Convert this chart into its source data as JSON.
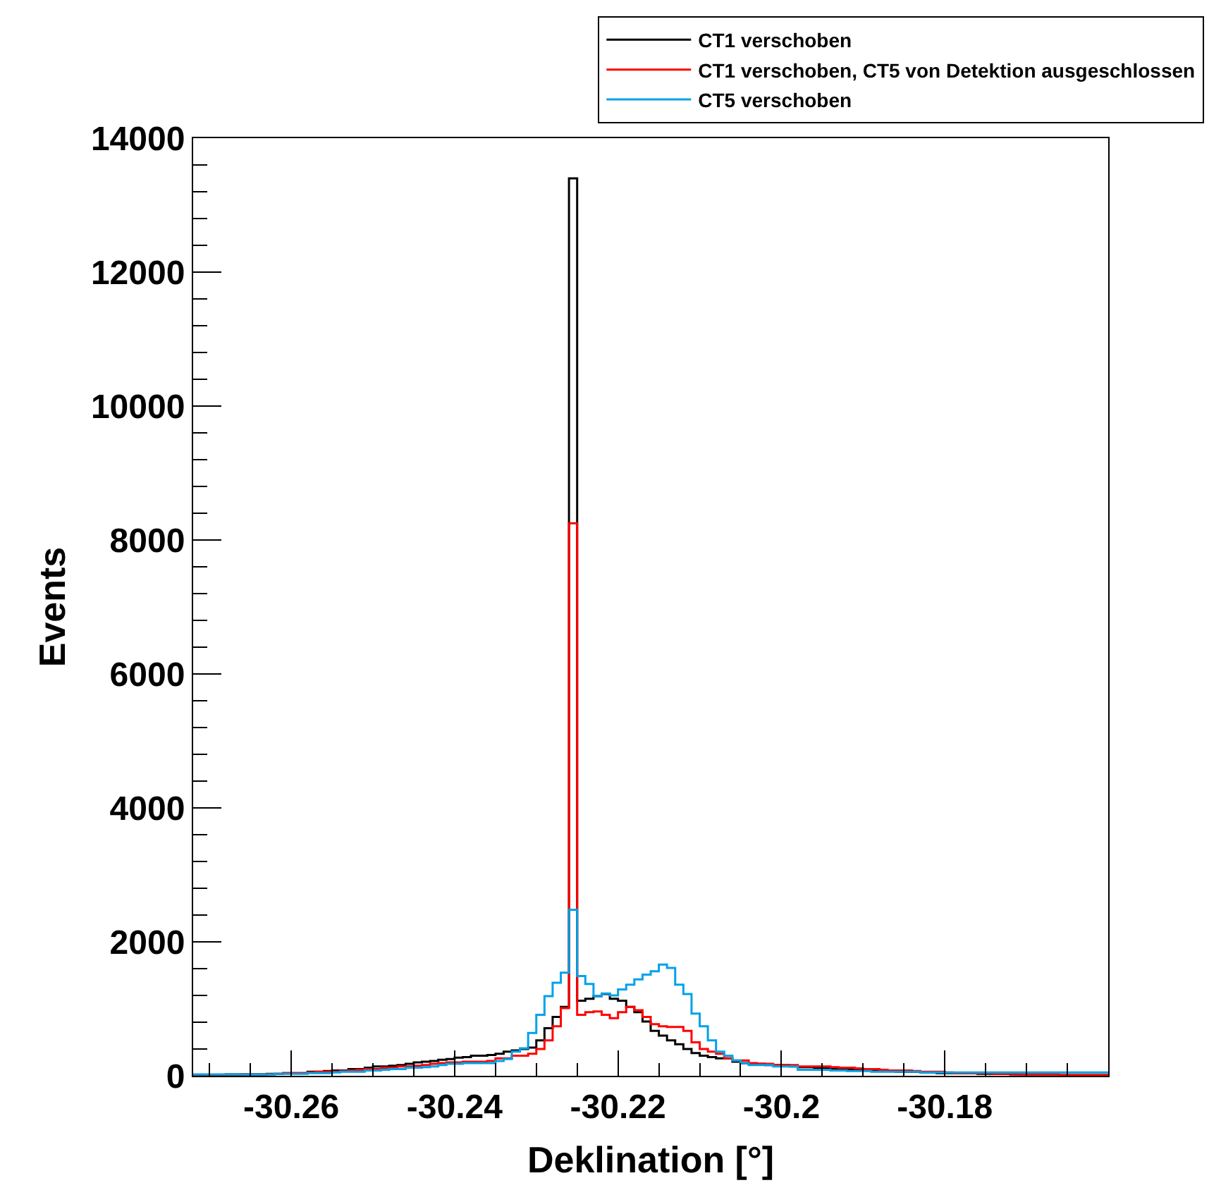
{
  "chart_data": {
    "type": "histogram",
    "xlabel": "Deklination [°]",
    "ylabel": "Events",
    "bins": [
      -30.272,
      -30.271,
      -30.27,
      -30.269,
      -30.268,
      -30.267,
      -30.266,
      -30.265,
      -30.264,
      -30.263,
      -30.262,
      -30.261,
      -30.26,
      -30.259,
      -30.258,
      -30.257,
      -30.256,
      -30.255,
      -30.254,
      -30.253,
      -30.252,
      -30.251,
      -30.25,
      -30.249,
      -30.248,
      -30.247,
      -30.246,
      -30.245,
      -30.244,
      -30.243,
      -30.242,
      -30.241,
      -30.24,
      -30.239,
      -30.238,
      -30.237,
      -30.236,
      -30.235,
      -30.234,
      -30.233,
      -30.232,
      -30.231,
      -30.23,
      -30.229,
      -30.228,
      -30.227,
      -30.226,
      -30.225,
      -30.224,
      -30.223,
      -30.222,
      -30.221,
      -30.22,
      -30.219,
      -30.218,
      -30.217,
      -30.216,
      -30.215,
      -30.214,
      -30.213,
      -30.212,
      -30.211,
      -30.21,
      -30.209,
      -30.208,
      -30.207,
      -30.206,
      -30.205,
      -30.204,
      -30.203,
      -30.202,
      -30.201,
      -30.2,
      -30.199,
      -30.198,
      -30.197,
      -30.196,
      -30.195,
      -30.194,
      -30.193,
      -30.192,
      -30.191,
      -30.19,
      -30.189,
      -30.188,
      -30.187,
      -30.186,
      -30.185,
      -30.184,
      -30.183,
      -30.182,
      -30.181,
      -30.18,
      -30.179,
      -30.178,
      -30.177,
      -30.176,
      -30.175,
      -30.174,
      -30.173,
      -30.172,
      -30.171,
      -30.17,
      -30.169,
      -30.168,
      -30.167,
      -30.166,
      -30.165,
      -30.164,
      -30.163,
      -30.162,
      -30.161,
      -30.16
    ],
    "series": [
      {
        "name": "CT1 verschoben",
        "color": "#000000",
        "values": [
          10,
          10,
          10,
          10,
          20,
          20,
          20,
          20,
          20,
          30,
          30,
          40,
          40,
          40,
          60,
          60,
          70,
          80,
          80,
          100,
          100,
          120,
          140,
          140,
          150,
          160,
          180,
          200,
          210,
          220,
          240,
          250,
          270,
          280,
          300,
          300,
          310,
          330,
          360,
          380,
          400,
          420,
          530,
          710,
          880,
          1030,
          13400,
          1120,
          1150,
          1190,
          1220,
          1150,
          1120,
          1030,
          950,
          810,
          670,
          600,
          530,
          470,
          400,
          340,
          300,
          280,
          260,
          260,
          210,
          190,
          180,
          180,
          160,
          160,
          160,
          140,
          130,
          130,
          120,
          110,
          100,
          100,
          100,
          90,
          80,
          80,
          80,
          70,
          60,
          60,
          60,
          50,
          50,
          40,
          40,
          40,
          40,
          40,
          30,
          30,
          30,
          30,
          20,
          20,
          20,
          20,
          20,
          20,
          10,
          10,
          10,
          10,
          10,
          10
        ]
      },
      {
        "name": "CT1 verschoben, CT5 von Detektion ausgeschlossen",
        "color": "#ff0000",
        "values": [
          0,
          0,
          10,
          10,
          10,
          10,
          20,
          20,
          20,
          20,
          30,
          40,
          40,
          40,
          50,
          60,
          60,
          60,
          70,
          80,
          90,
          100,
          100,
          120,
          120,
          140,
          140,
          150,
          160,
          180,
          190,
          200,
          200,
          210,
          210,
          210,
          220,
          260,
          260,
          300,
          300,
          330,
          400,
          530,
          740,
          1010,
          8250,
          910,
          950,
          960,
          910,
          860,
          950,
          1030,
          980,
          880,
          770,
          740,
          730,
          730,
          670,
          500,
          400,
          360,
          330,
          260,
          230,
          230,
          190,
          180,
          180,
          160,
          160,
          160,
          140,
          140,
          140,
          140,
          130,
          120,
          120,
          110,
          100,
          100,
          90,
          80,
          80,
          80,
          70,
          60,
          60,
          60,
          50,
          40,
          40,
          40,
          40,
          40,
          30,
          30,
          30,
          20,
          20,
          20,
          20,
          20,
          10,
          10,
          10,
          10,
          10,
          10
        ]
      },
      {
        "name": "CT5 verschoben",
        "color": "#00a2e8",
        "values": [
          20,
          20,
          20,
          20,
          20,
          20,
          20,
          20,
          20,
          20,
          30,
          30,
          30,
          30,
          40,
          40,
          40,
          50,
          60,
          60,
          60,
          80,
          80,
          90,
          100,
          100,
          120,
          120,
          130,
          140,
          160,
          180,
          180,
          190,
          190,
          190,
          190,
          220,
          250,
          360,
          410,
          640,
          910,
          1190,
          1390,
          1540,
          2480,
          1490,
          1370,
          1190,
          1230,
          1200,
          1290,
          1360,
          1440,
          1510,
          1560,
          1660,
          1610,
          1360,
          1220,
          930,
          740,
          530,
          360,
          300,
          230,
          190,
          160,
          160,
          160,
          140,
          140,
          140,
          90,
          90,
          90,
          90,
          80,
          80,
          70,
          70,
          70,
          60,
          60,
          60,
          60,
          60,
          60,
          50,
          50,
          50,
          50,
          50,
          50,
          50,
          50,
          50,
          50,
          50,
          50,
          50,
          50,
          50,
          50,
          50,
          50,
          50,
          50,
          50,
          50,
          50
        ]
      }
    ],
    "xlim": [
      -30.272,
      -30.16
    ],
    "xticks": [
      -30.26,
      -30.24,
      -30.22,
      {
        "value": -30.2,
        "label": "-30.2"
      },
      -30.18
    ],
    "ylim": [
      0,
      14000
    ],
    "yticks": [
      0,
      2000,
      4000,
      6000,
      8000,
      10000,
      12000,
      14000
    ],
    "legend": "top right"
  }
}
